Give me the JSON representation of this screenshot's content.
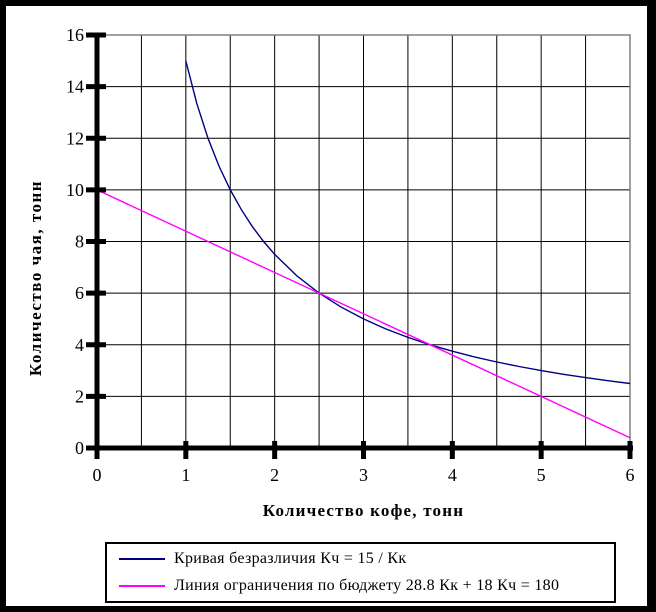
{
  "figure": {
    "background": "#ffffff",
    "frame_color": "#000000",
    "plot_border_color": "#808080",
    "grid_color": "#000000",
    "axis_color": "#000000",
    "text_color": "#000000"
  },
  "chart_data": {
    "type": "line",
    "title": "",
    "xlabel": "Количество кофе, тонн",
    "ylabel": "Количество чая, тонн",
    "xlim": [
      0,
      6
    ],
    "ylim": [
      0,
      16
    ],
    "x_ticks": [
      0,
      1,
      2,
      3,
      4,
      5,
      6
    ],
    "y_ticks": [
      0,
      2,
      4,
      6,
      8,
      10,
      12,
      14,
      16
    ],
    "x_grid_step": 0.5,
    "y_grid_step": 2,
    "grid": true,
    "legend_position": "bottom",
    "series": [
      {
        "id": "indifference-curve",
        "name": "Кривая безразличия Кч = 15 / Кк",
        "color": "#000080",
        "points": [
          [
            1,
            15
          ],
          [
            1.125,
            13.3333
          ],
          [
            1.25,
            12
          ],
          [
            1.375,
            10.9091
          ],
          [
            1.5,
            10
          ],
          [
            1.625,
            9.2308
          ],
          [
            1.75,
            8.5714
          ],
          [
            1.875,
            8
          ],
          [
            2,
            7.5
          ],
          [
            2.25,
            6.6667
          ],
          [
            2.5,
            6
          ],
          [
            2.75,
            5.4545
          ],
          [
            3,
            5
          ],
          [
            3.25,
            4.6154
          ],
          [
            3.5,
            4.2857
          ],
          [
            3.75,
            4
          ],
          [
            4,
            3.75
          ],
          [
            4.25,
            3.5294
          ],
          [
            4.5,
            3.3333
          ],
          [
            4.75,
            3.1579
          ],
          [
            5,
            3
          ],
          [
            5.25,
            2.8571
          ],
          [
            5.5,
            2.7273
          ],
          [
            5.75,
            2.6087
          ],
          [
            6,
            2.5
          ]
        ]
      },
      {
        "id": "budget-line",
        "name": "Линия ограничения по бюджету 28.8 Кк + 18 Кч = 180",
        "color": "#FF00FF",
        "points": [
          [
            0,
            10
          ],
          [
            6,
            0.4
          ]
        ]
      }
    ],
    "intersections": [
      [
        2.5,
        6
      ],
      [
        3.75,
        4
      ]
    ]
  }
}
